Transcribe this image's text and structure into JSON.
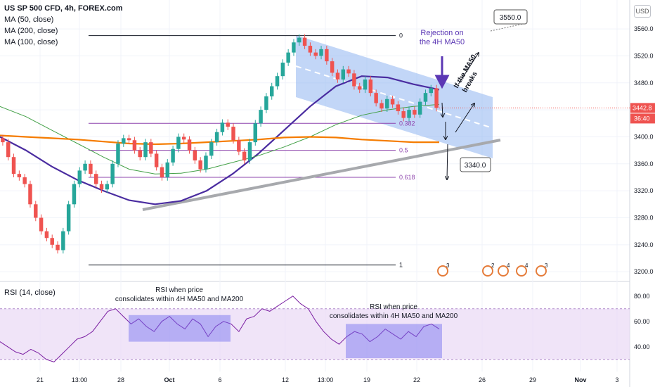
{
  "header": {
    "title": "US SP 500 CFD, 4h, FOREX.com",
    "ma_lines": [
      "MA (50, close)",
      "MA (200, close)",
      "MA (100, close)"
    ],
    "currency": "USD"
  },
  "rsi_panel": {
    "title": "RSI (14, close)"
  },
  "annotations": {
    "rejection": [
      "Rejection on",
      "the 4H MA50"
    ],
    "if_breaks": [
      "If the MA50",
      "breaks"
    ],
    "target_up": "3550.0",
    "target_down": "3340.0",
    "rsi_note_1": [
      "RSI when price",
      "consolidates within 4H MA50 and MA200"
    ],
    "rsi_note_2": [
      "RSI when price",
      "consolidates within 4H MA50 and MA200"
    ]
  },
  "fib_levels": [
    {
      "label": "0",
      "price": 3550
    },
    {
      "label": "0.382",
      "price": 3420
    },
    {
      "label": "0.5",
      "price": 3380
    },
    {
      "label": "0.618",
      "price": 3340
    },
    {
      "label": "1",
      "price": 3210
    }
  ],
  "price_badges": {
    "last": "3442.8",
    "timer": "36:40"
  },
  "event_icons": [
    "3",
    "2",
    "4",
    "4",
    "3"
  ],
  "colors": {
    "up": "#26a69a",
    "down": "#ef5350",
    "ma50": "#4a2ca0",
    "ma200": "#43a047",
    "ma100": "#f57c00",
    "channel": "#90b4f0",
    "fib": "#8e44ad",
    "rsi_line": "#7b1fa2",
    "rsi_band": "#ead8f5"
  },
  "chart_data": [
    {
      "type": "candlestick",
      "title": "US SP 500 CFD, 4h, FOREX.com",
      "ylim": [
        3196,
        3582
      ],
      "y_ticks": [
        3200.0,
        3240.0,
        3280.0,
        3320.0,
        3360.0,
        3400.0,
        3440.0,
        3480.0,
        3520.0,
        3560.0
      ],
      "x_ticks": [
        "21",
        "13:00",
        "28",
        "Oct",
        "6",
        "12",
        "13:00",
        "19",
        "22",
        "26",
        "29",
        "Nov",
        "3"
      ],
      "series": [
        {
          "name": "MA (50, close)",
          "values": [
            3400,
            3380,
            3356,
            3336,
            3320,
            3306,
            3300,
            3305,
            3320,
            3345,
            3375,
            3410,
            3445,
            3475,
            3490,
            3488,
            3478,
            3470
          ]
        },
        {
          "name": "MA (200, close)",
          "values": [
            3445,
            3430,
            3410,
            3390,
            3370,
            3352,
            3345,
            3346,
            3352,
            3362,
            3372,
            3385,
            3400,
            3418,
            3432,
            3440,
            3445,
            3448
          ]
        },
        {
          "name": "MA (100, close)",
          "values": [
            3402,
            3400,
            3398,
            3396,
            3393,
            3390,
            3389,
            3390,
            3392,
            3394,
            3396,
            3399,
            3400,
            3399,
            3396,
            3394,
            3392,
            3392
          ]
        }
      ],
      "close": [
        3392,
        3370,
        3345,
        3340,
        3330,
        3300,
        3280,
        3260,
        3250,
        3240,
        3232,
        3260,
        3300,
        3330,
        3350,
        3360,
        3345,
        3330,
        3322,
        3330,
        3360,
        3390,
        3398,
        3395,
        3380,
        3370,
        3392,
        3375,
        3355,
        3340,
        3362,
        3382,
        3400,
        3396,
        3380,
        3365,
        3352,
        3372,
        3392,
        3407,
        3421,
        3415,
        3395,
        3378,
        3365,
        3392,
        3420,
        3440,
        3460,
        3475,
        3490,
        3510,
        3525,
        3540,
        3547,
        3535,
        3525,
        3520,
        3530,
        3512,
        3495,
        3485,
        3500,
        3494,
        3475,
        3470,
        3485,
        3465,
        3450,
        3442,
        3456,
        3448,
        3438,
        3428,
        3440,
        3433,
        3452,
        3465,
        3472,
        3442.8
      ],
      "last_price": 3442.8
    },
    {
      "type": "line",
      "title": "RSI (14, close)",
      "ylim": [
        26,
        86
      ],
      "y_ticks": [
        40.0,
        60.0,
        80.0
      ],
      "bands": [
        30,
        70
      ],
      "values": [
        44,
        40,
        36,
        34,
        38,
        35,
        30,
        28,
        34,
        40,
        46,
        48,
        52,
        60,
        68,
        70,
        64,
        58,
        62,
        56,
        52,
        60,
        64,
        58,
        54,
        62,
        58,
        48,
        56,
        60,
        58,
        52,
        62,
        64,
        70,
        68,
        72,
        76,
        80,
        74,
        70,
        60,
        52,
        46,
        42,
        48,
        52,
        50,
        44,
        48,
        54,
        50,
        46,
        52,
        48,
        56,
        58,
        54
      ],
      "note_values": [
        55,
        55
      ]
    }
  ]
}
